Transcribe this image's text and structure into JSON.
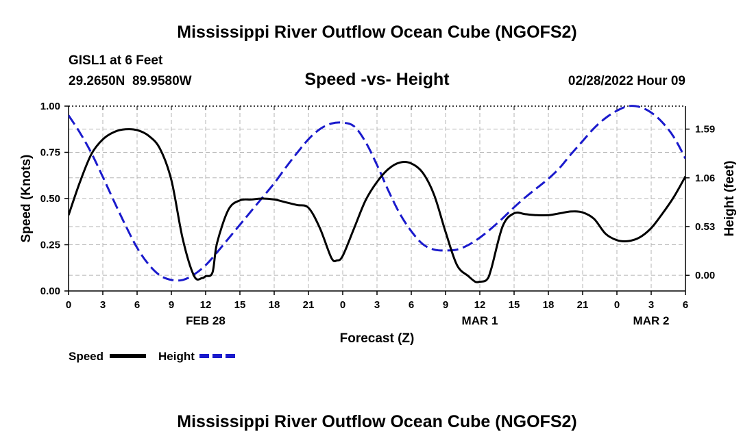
{
  "title": "Mississippi River Outflow Ocean Cube (NGOFS2)",
  "station": "GISL1 at 6 Feet",
  "coords": "29.2650N  89.9580W",
  "subtitle": "Speed -vs- Height",
  "datetime": "02/28/2022 Hour 09",
  "footer_title": "Mississippi River Outflow Ocean Cube (NGOFS2)",
  "chart_data": {
    "type": "line",
    "title": "Speed -vs- Height",
    "xlabel": "Forecast (Z)",
    "ylabel": "Speed (Knots)",
    "y2label": "Height (feet)",
    "x_range": [
      0,
      54
    ],
    "ylim": [
      0,
      1
    ],
    "y2lim": [
      -0.17,
      1.84
    ],
    "grid": true,
    "x_ticks": [
      0,
      3,
      6,
      9,
      12,
      15,
      18,
      21,
      24,
      27,
      30,
      33,
      36,
      39,
      42,
      45,
      48,
      51,
      54
    ],
    "x_tick_labels": [
      "0",
      "3",
      "6",
      "9",
      "12",
      "15",
      "18",
      "21",
      "0",
      "3",
      "6",
      "9",
      "12",
      "15",
      "18",
      "21",
      "0",
      "3",
      "6"
    ],
    "y_ticks": [
      0,
      0.25,
      0.5,
      0.75,
      1.0
    ],
    "y_tick_labels": [
      "0.00",
      "0.25",
      "0.50",
      "0.75",
      "1.00"
    ],
    "y2_ticks": [
      0,
      0.53,
      1.06,
      1.59
    ],
    "y2_tick_labels": [
      "0.00",
      "0.53",
      "1.06",
      "1.59"
    ],
    "date_labels": [
      {
        "x": 12,
        "label": "FEB 28"
      },
      {
        "x": 36,
        "label": "MAR 1"
      },
      {
        "x": 51,
        "label": "MAR 2"
      }
    ],
    "series": [
      {
        "name": "Speed",
        "axis": "left",
        "color": "#000000",
        "dash": "solid",
        "x": [
          0,
          1,
          2,
          3,
          4,
          5,
          6,
          7,
          8,
          9,
          10,
          11,
          11.7,
          12,
          12.6,
          13,
          14,
          15,
          16,
          17,
          18,
          19,
          20,
          21,
          22,
          23,
          23.5,
          24,
          25,
          26,
          27,
          28,
          29,
          30,
          31,
          32,
          33,
          34,
          35,
          35.6,
          36,
          36.6,
          37,
          38,
          39,
          40,
          41,
          42,
          43,
          44,
          45,
          46,
          47,
          48,
          49,
          50,
          51,
          52,
          53,
          54
        ],
        "values": [
          0.41,
          0.59,
          0.74,
          0.82,
          0.86,
          0.875,
          0.87,
          0.84,
          0.77,
          0.6,
          0.28,
          0.08,
          0.07,
          0.08,
          0.1,
          0.26,
          0.44,
          0.49,
          0.495,
          0.5,
          0.495,
          0.48,
          0.465,
          0.45,
          0.34,
          0.18,
          0.165,
          0.19,
          0.34,
          0.49,
          0.59,
          0.66,
          0.695,
          0.69,
          0.64,
          0.52,
          0.32,
          0.14,
          0.08,
          0.05,
          0.05,
          0.06,
          0.12,
          0.35,
          0.42,
          0.415,
          0.41,
          0.41,
          0.42,
          0.43,
          0.425,
          0.39,
          0.31,
          0.275,
          0.27,
          0.29,
          0.34,
          0.42,
          0.51,
          0.62
        ]
      },
      {
        "name": "Height",
        "axis": "right",
        "color": "#1a1acc",
        "dash": "dashed",
        "x": [
          0,
          1,
          2,
          3,
          4,
          5,
          6,
          7,
          8,
          9,
          10,
          11,
          12,
          13,
          14,
          15,
          16,
          17,
          18,
          19,
          20,
          21,
          22,
          23,
          24,
          25,
          26,
          27,
          28,
          29,
          30,
          31,
          32,
          33,
          34,
          35,
          36,
          37,
          38,
          39,
          40,
          41,
          42,
          43,
          44,
          45,
          46,
          47,
          48,
          49,
          50,
          51,
          52,
          53,
          54
        ],
        "values": [
          1.74,
          1.55,
          1.33,
          1.07,
          0.8,
          0.54,
          0.3,
          0.12,
          0.0,
          -0.05,
          -0.05,
          0.01,
          0.11,
          0.25,
          0.4,
          0.55,
          0.7,
          0.85,
          1.0,
          1.17,
          1.33,
          1.48,
          1.59,
          1.65,
          1.66,
          1.62,
          1.45,
          1.2,
          0.92,
          0.67,
          0.48,
          0.34,
          0.28,
          0.27,
          0.28,
          0.33,
          0.41,
          0.51,
          0.62,
          0.74,
          0.85,
          0.95,
          1.05,
          1.17,
          1.32,
          1.46,
          1.6,
          1.71,
          1.79,
          1.84,
          1.83,
          1.77,
          1.66,
          1.5,
          1.27
        ]
      }
    ]
  }
}
